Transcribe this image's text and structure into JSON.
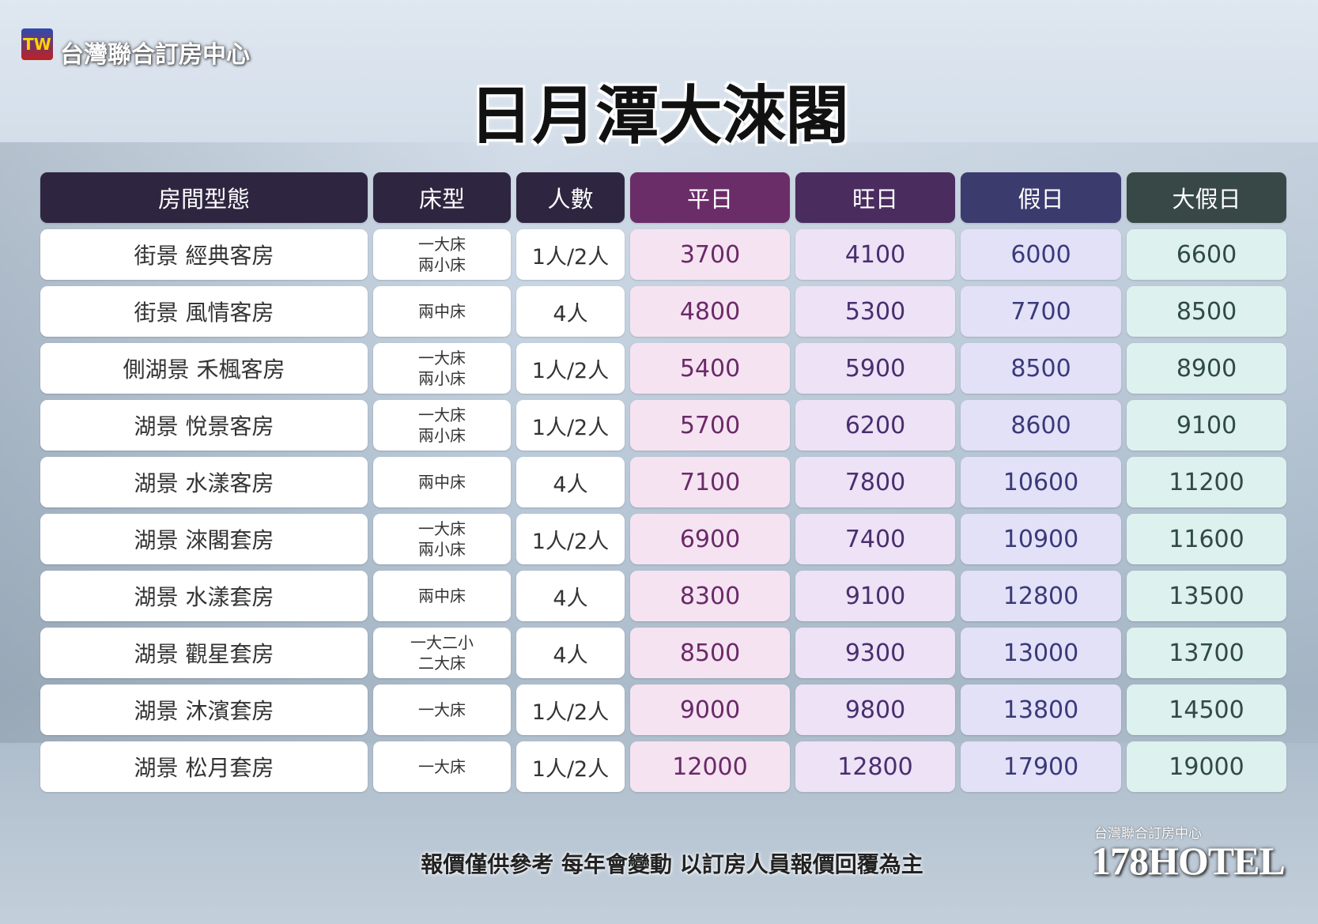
{
  "header": {
    "logo": "TW",
    "brand": "台灣聯合訂房中心",
    "title": "日月潭大淶閣"
  },
  "table": {
    "columns": [
      "房間型態",
      "床型",
      "人數",
      "平日",
      "旺日",
      "假日",
      "大假日"
    ],
    "rows": [
      [
        "街景 經典客房",
        "一大床\n兩小床",
        "1人/2人",
        3700,
        4100,
        6000,
        6600
      ],
      [
        "街景 風情客房",
        "兩中床",
        "4人",
        4800,
        5300,
        7700,
        8500
      ],
      [
        "側湖景 禾楓客房",
        "一大床\n兩小床",
        "1人/2人",
        5400,
        5900,
        8500,
        8900
      ],
      [
        "湖景 悅景客房",
        "一大床\n兩小床",
        "1人/2人",
        5700,
        6200,
        8600,
        9100
      ],
      [
        "湖景 水漾客房",
        "兩中床",
        "4人",
        7100,
        7800,
        10600,
        11200
      ],
      [
        "湖景 淶閣套房",
        "一大床\n兩小床",
        "1人/2人",
        6900,
        7400,
        10900,
        11600
      ],
      [
        "湖景 水漾套房",
        "兩中床",
        "4人",
        8300,
        9100,
        12800,
        13500
      ],
      [
        "湖景 觀星套房",
        "一大二小\n二大床",
        "4人",
        8500,
        9300,
        13000,
        13700
      ],
      [
        "湖景 沐濱套房",
        "一大床",
        "1人/2人",
        9000,
        9800,
        13800,
        14500
      ],
      [
        "湖景 松月套房",
        "一大床",
        "1人/2人",
        12000,
        12800,
        17900,
        19000
      ]
    ]
  },
  "footer": {
    "note": "報價僅供參考  每年會變動  以訂房人員報價回覆為主",
    "brand_small": "台灣聯合訂房中心",
    "brand_large": "178HOTEL"
  }
}
